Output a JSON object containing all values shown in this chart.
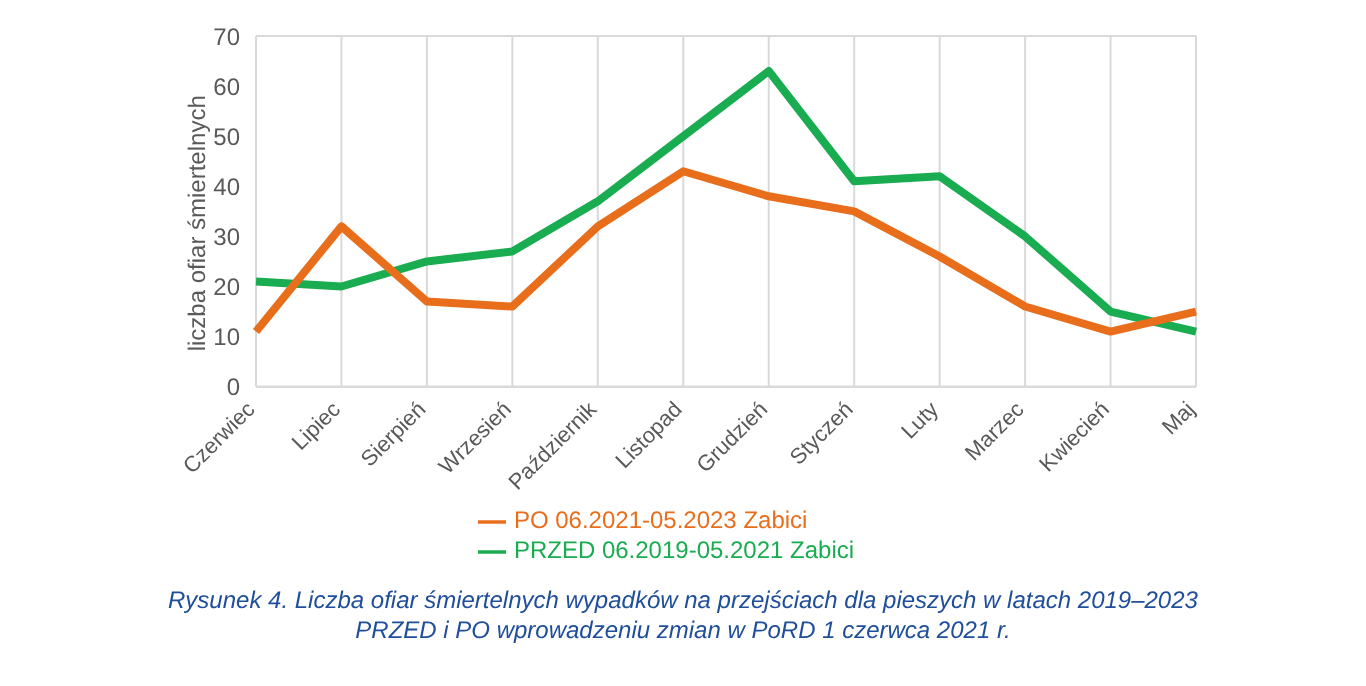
{
  "chart_data": {
    "type": "line",
    "ylabel": "liczba ofiar śmiertelnych",
    "categories": [
      "Czerwiec",
      "Lipiec",
      "Sierpień",
      "Wrzesień",
      "Październik",
      "Listopad",
      "Grudzień",
      "Styczeń",
      "Luty",
      "Marzec",
      "Kwiecień",
      "Maj"
    ],
    "series": [
      {
        "name": "PRZED 06.2019-05.2021 Zabici",
        "color": "#1aac50",
        "values": [
          21,
          20,
          25,
          27,
          37,
          50,
          63,
          41,
          42,
          30,
          15,
          11
        ]
      },
      {
        "name": "PO 06.2021-05.2023 Zabici",
        "color": "#e86e1c",
        "values": [
          11,
          32,
          17,
          16,
          32,
          43,
          38,
          35,
          26,
          16,
          11,
          15
        ]
      }
    ],
    "ylim": [
      0,
      70
    ],
    "yticks": [
      0,
      10,
      20,
      30,
      40,
      50,
      60,
      70
    ],
    "grid": true,
    "legend": "bottom",
    "marker": "none",
    "line_style": "solid",
    "annotations": [
      "Rysunek 4. Liczba ofiar śmiertelnych wypadków na przejściach dla pieszych w latach 2019–2023",
      "PRZED i PO wprowadzeniu zmian w PoRD 1 czerwca 2021 r."
    ]
  }
}
